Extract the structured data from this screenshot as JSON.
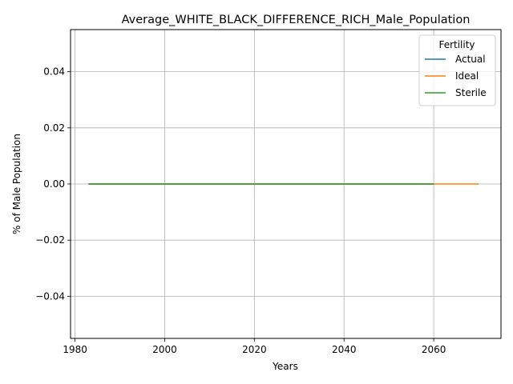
{
  "chart_data": {
    "type": "line",
    "title": "Average_WHITE_BLACK_DIFFERENCE_RICH_Male_Population",
    "xlabel": "Years",
    "ylabel": "% of Male Population",
    "xlim": [
      1979,
      2075
    ],
    "ylim": [
      -0.055,
      0.055
    ],
    "xticks": [
      1980,
      2000,
      2020,
      2040,
      2060
    ],
    "yticks": [
      -0.04,
      -0.02,
      0.0,
      0.02,
      0.04
    ],
    "ytick_labels": [
      "−0.04",
      "−0.02",
      "0.00",
      "0.02",
      "0.04"
    ],
    "grid": true,
    "legend": {
      "title": "Fertility",
      "placement": "top-right"
    },
    "series": [
      {
        "name": "Actual",
        "color": "#1f77b4",
        "x": [
          1983,
          2060
        ],
        "y": [
          0.0,
          0.0
        ]
      },
      {
        "name": "Ideal",
        "color": "#ff7f0e",
        "x": [
          1983,
          2070
        ],
        "y": [
          0.0,
          0.0
        ]
      },
      {
        "name": "Sterile",
        "color": "#2ca02c",
        "x": [
          1983,
          2060
        ],
        "y": [
          0.0,
          0.0
        ]
      }
    ]
  }
}
